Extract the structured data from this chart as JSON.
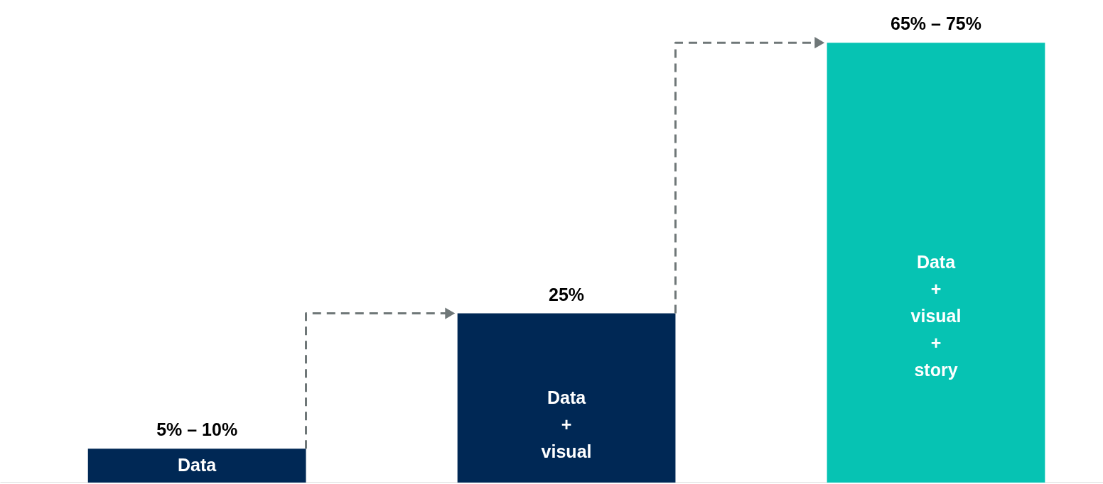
{
  "chart_data": {
    "type": "bar",
    "categories": [
      "Data",
      "Data\n+\nvisual",
      "Data\n+\nvisual\n+\nstory"
    ],
    "values": [
      5,
      25,
      65
    ],
    "value_labels": [
      "5% – 10%",
      "25%",
      "65% – 75%"
    ],
    "colors": [
      "#002855",
      "#002855",
      "#06c3b3"
    ],
    "grid": false
  }
}
